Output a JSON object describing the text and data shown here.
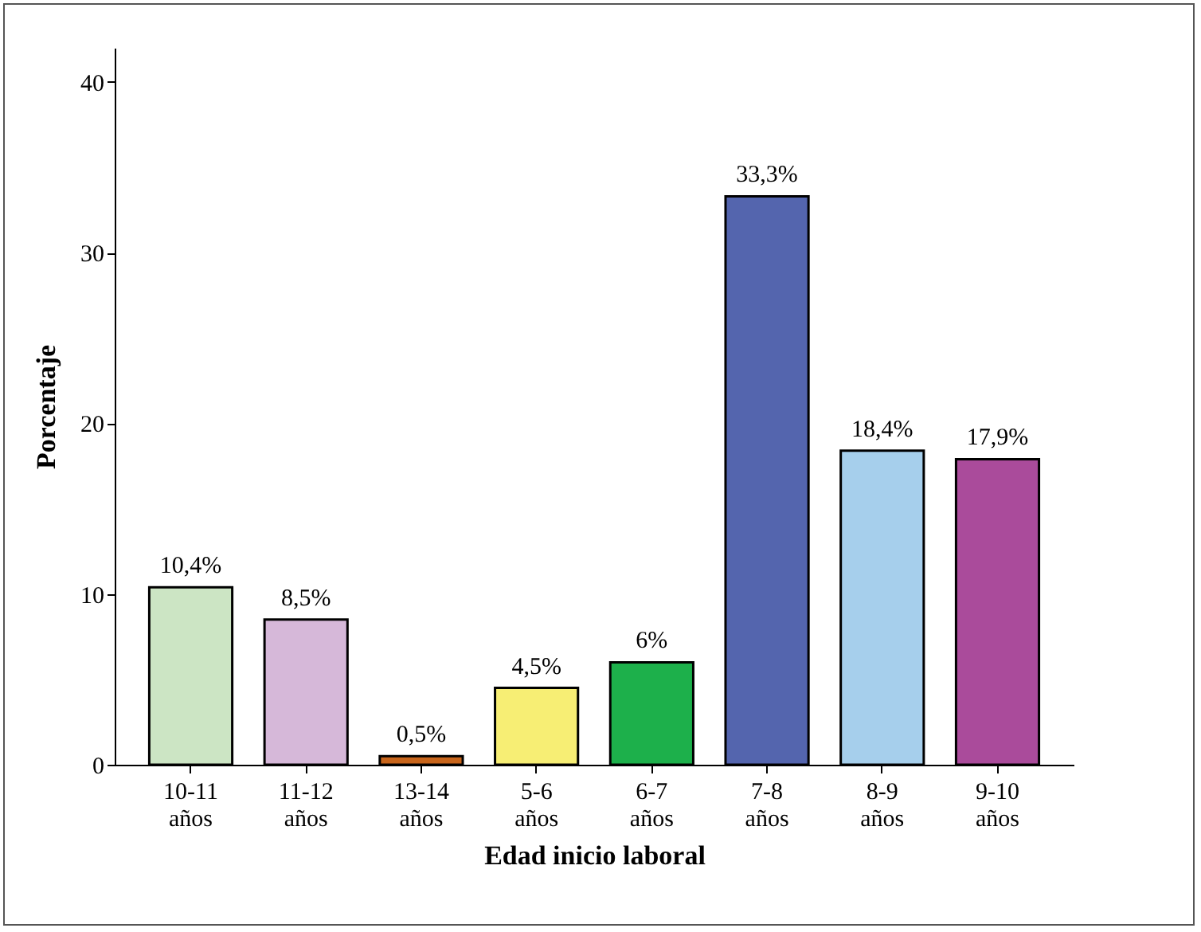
{
  "chart_data": {
    "type": "bar",
    "xlabel": "Edad inicio laboral",
    "ylabel": "Porcentaje",
    "categories": [
      "10-11 años",
      "11-12 años",
      "13-14 años",
      "5-6 años",
      "6-7 años",
      "7-8 años",
      "8-9 años",
      "9-10 años"
    ],
    "values": [
      10.4,
      8.5,
      0.5,
      4.5,
      6,
      33.3,
      18.4,
      17.9
    ],
    "colors": [
      "#cce5c4",
      "#d6b8d9",
      "#c8651b",
      "#f7ee74",
      "#1db04b",
      "#5465ae",
      "#a6cfec",
      "#aa4b9b"
    ],
    "value_labels": [
      "10,4%",
      "8,5%",
      "0,5%",
      "4,5%",
      "6%",
      "33,3%",
      "18,4%",
      "17,9%"
    ],
    "ylim": [
      0,
      42
    ],
    "yticks": [
      0,
      10,
      20,
      30,
      40
    ],
    "grid": false,
    "legend": false
  }
}
